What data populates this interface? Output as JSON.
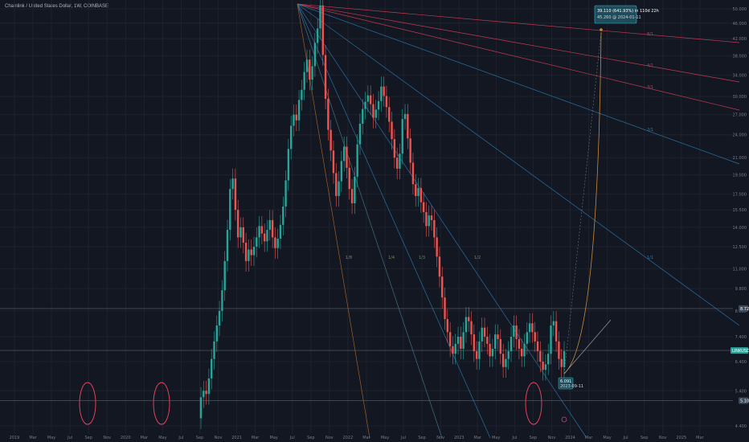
{
  "header": {
    "title": "Chainlink / United States Dollar, 1W, COINBASE"
  },
  "chart_data": {
    "type": "candlestick",
    "log_scale": true,
    "x_axis": {
      "tick_labels": [
        "2019",
        "Mar",
        "May",
        "Jul",
        "Sep",
        "Nov",
        "2020",
        "Mar",
        "May",
        "Jul",
        "Sep",
        "Nov",
        "2021",
        "Mar",
        "May",
        "Jul",
        "Sep",
        "Nov",
        "2022",
        "Mar",
        "May",
        "Jul",
        "Sep",
        "Nov",
        "2023",
        "Mar",
        "May",
        "Jul",
        "Sep",
        "Nov",
        "2024",
        "Mar",
        "May",
        "Jul",
        "Sep",
        "Nov",
        "2025",
        "Mar"
      ]
    },
    "y_axis": {
      "range": [
        4.4,
        55
      ],
      "tick_labels": [
        "50.000",
        "46.000",
        "42.000",
        "38.000",
        "34.000",
        "30.000",
        "27.000",
        "24.000",
        "21.000",
        "19.000",
        "17.000",
        "15.500",
        "14.000",
        "12.500",
        "11.000",
        "9.800",
        "8.600",
        "7.400",
        "6.400",
        "5.400",
        "4.400"
      ]
    },
    "price_labels": [
      {
        "text": "8.72",
        "value": 8.72,
        "color": "#3d4a5c"
      },
      {
        "text": "LINKUSD 6.830",
        "value": 6.83,
        "color": "#26a69a"
      },
      {
        "text": "5.10",
        "value": 5.1,
        "color": "#3d4a5c"
      }
    ],
    "horizontal_lines": [
      8.72,
      6.83,
      5.1
    ],
    "fan_labels": [
      "8/1",
      "4/1",
      "3/1",
      "2/1",
      "1/1",
      "1/2",
      "1/3",
      "1/4",
      "1/8"
    ],
    "callout": {
      "line1": "39.110 (641.93%) in 110d 22h",
      "line2": "45.260 @ 2024-01-11"
    },
    "small_callout": {
      "line1": "6.091",
      "line2": "2023-09-11"
    },
    "colors": {
      "up": "#26a69a",
      "down": "#ef5350",
      "grid": "#1e222d",
      "bg": "#131722",
      "fan_blue": "#2e7fb8",
      "fan_red": "#e0415a",
      "fan_orange": "#b36b2b"
    }
  }
}
